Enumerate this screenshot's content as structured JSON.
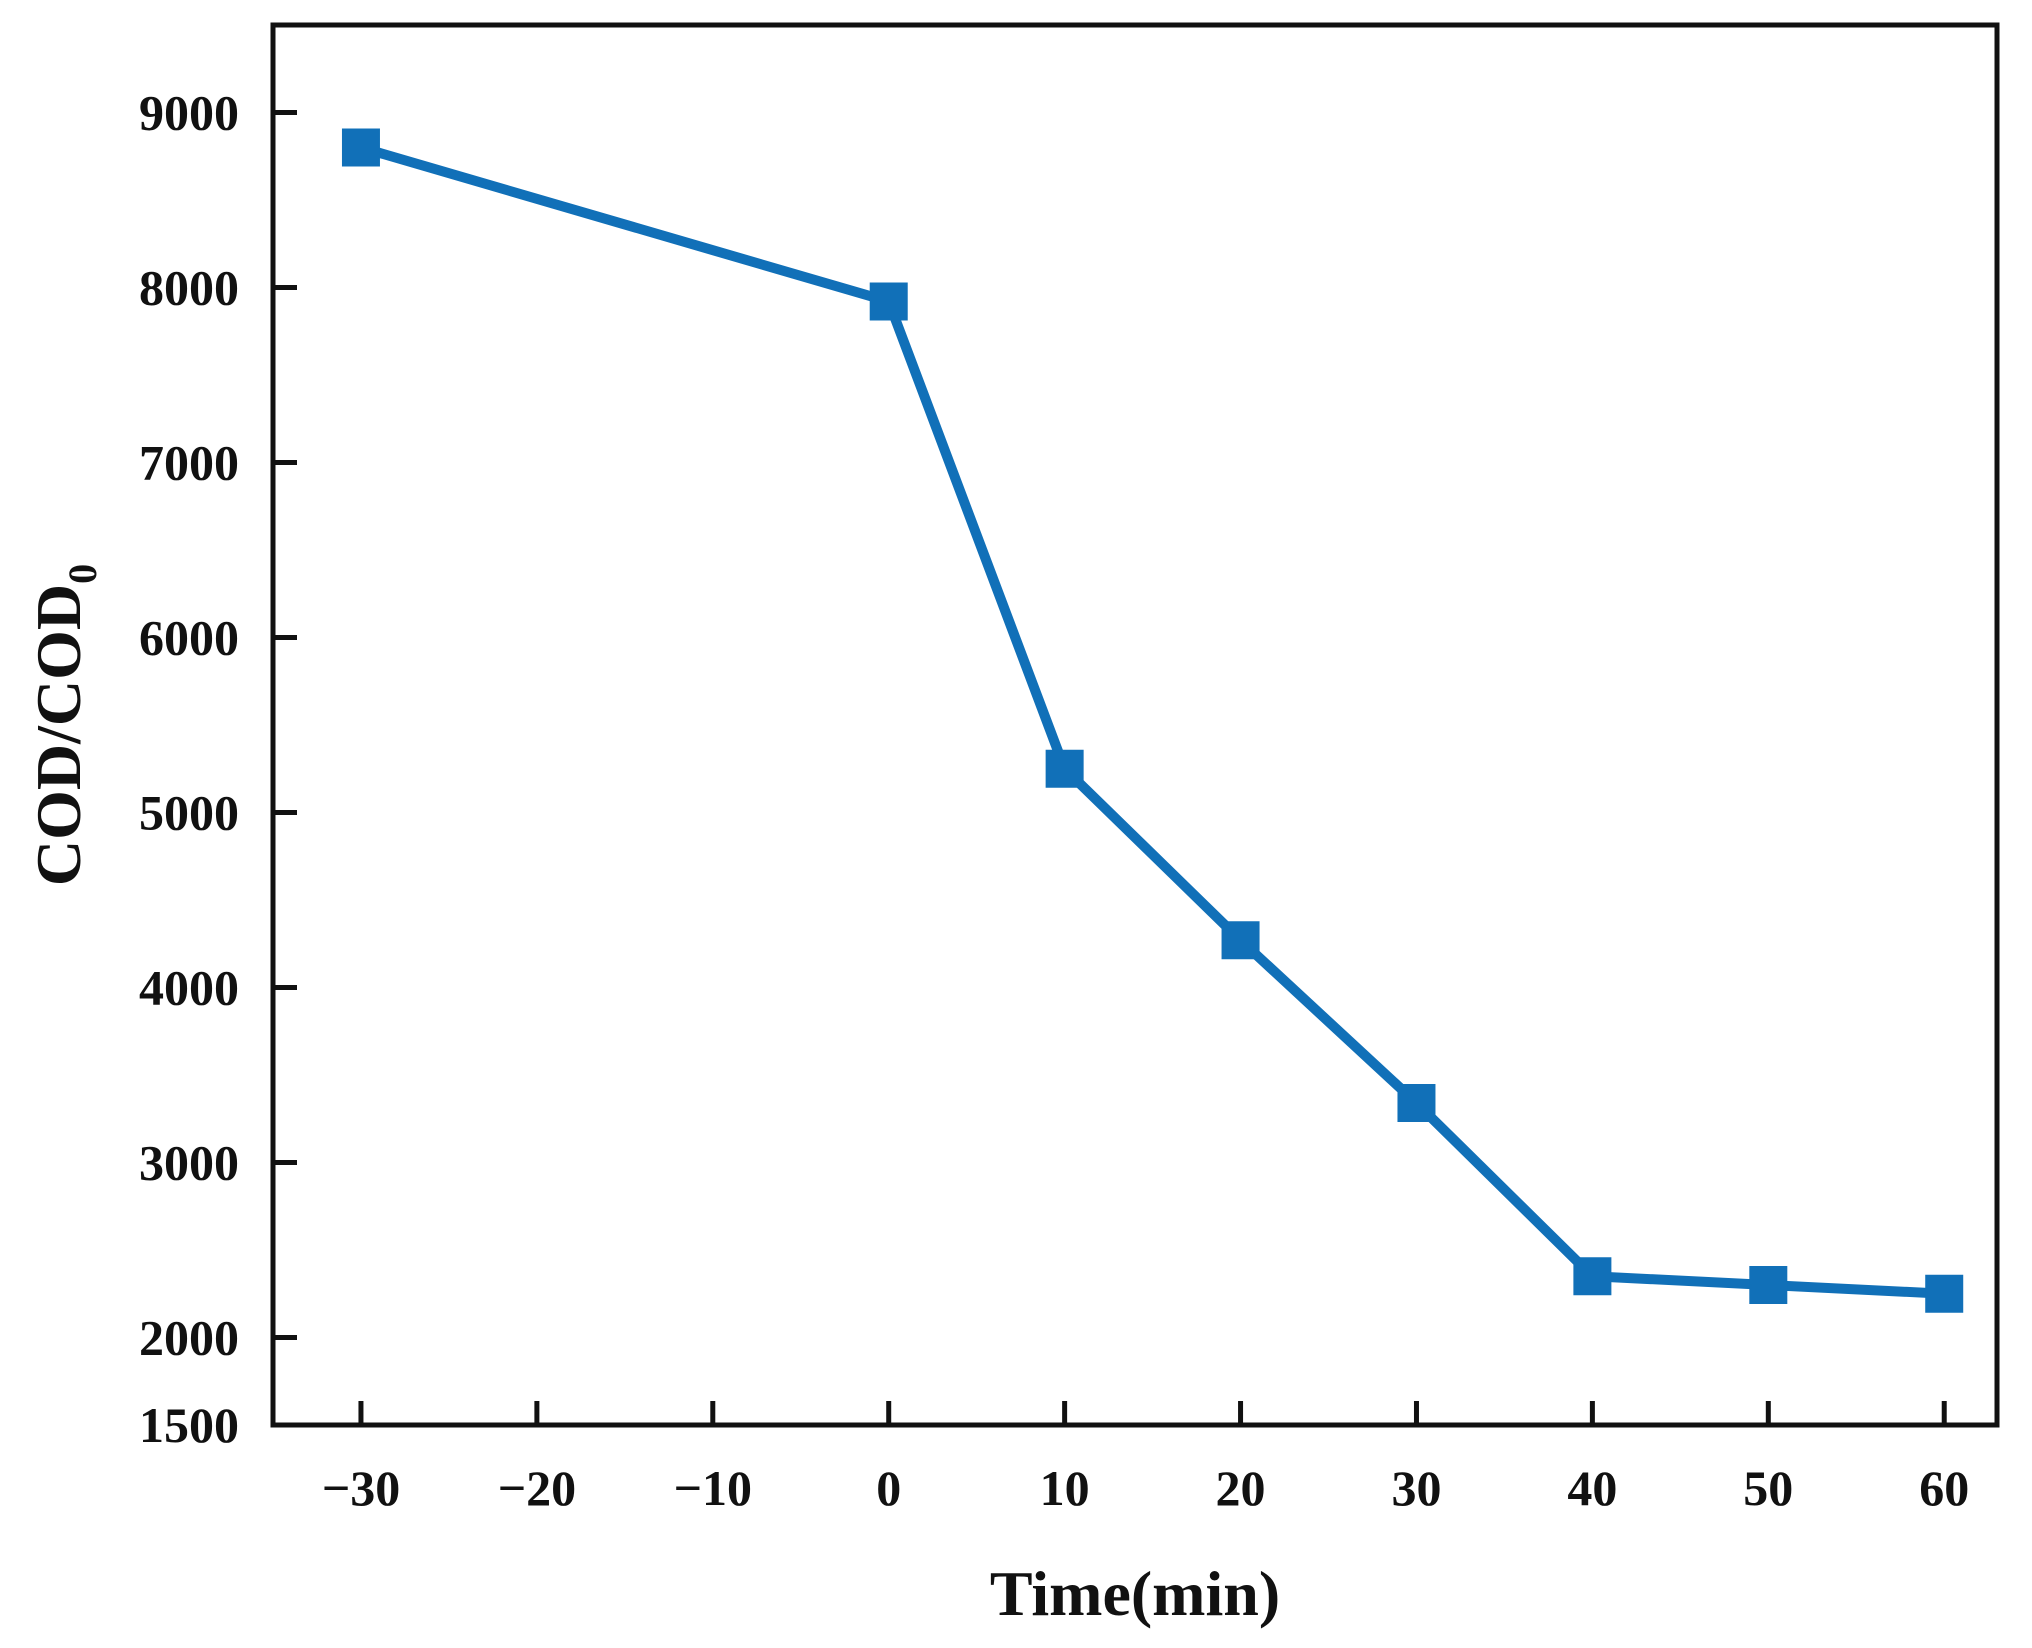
{
  "chart_data": {
    "type": "line",
    "title": "",
    "xlabel": "Time(min)",
    "ylabel_main": "COD/COD",
    "ylabel_sub": "0",
    "x": [
      -30,
      0,
      10,
      20,
      30,
      40,
      50,
      60
    ],
    "series": [
      {
        "name": "COD",
        "color": "#1170b8",
        "values": [
          8800,
          7920,
          5250,
          4270,
          3340,
          2350,
          2300,
          2250
        ]
      }
    ],
    "xticks": [
      -30,
      -20,
      -10,
      0,
      10,
      20,
      30,
      40,
      50,
      60
    ],
    "xtick_labels": [
      "−30",
      "−20",
      "−10",
      "0",
      "10",
      "20",
      "30",
      "40",
      "50",
      "60"
    ],
    "yticks": [
      1500,
      2000,
      3000,
      4000,
      5000,
      6000,
      7000,
      8000,
      9000
    ],
    "ytick_labels": [
      "1500",
      "2000",
      "3000",
      "4000",
      "5000",
      "6000",
      "7000",
      "8000",
      "9000"
    ],
    "xlim": [
      -35,
      63
    ],
    "ylim": [
      1500,
      9500
    ],
    "grid": false,
    "legend": "none"
  }
}
